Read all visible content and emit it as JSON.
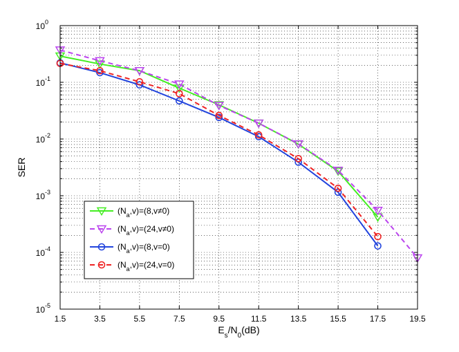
{
  "chart_data": {
    "type": "line",
    "xlabel": "E_s/N_0(dB)",
    "ylabel": "SER",
    "x": [
      1.5,
      3.5,
      5.5,
      7.5,
      9.5,
      11.5,
      13.5,
      15.5,
      17.5,
      19.5
    ],
    "xlim": [
      1.5,
      19.5
    ],
    "ylim": [
      1e-05,
      1
    ],
    "yscale": "log",
    "grid": true,
    "legend_position": "lower-left",
    "xtick_labels": [
      "1.5",
      "3.5",
      "5.5",
      "7.5",
      "9.5",
      "11.5",
      "13.5",
      "15.5",
      "17.5",
      "19.5"
    ],
    "ytick_labels": [
      {
        "base": "10",
        "exp": "0"
      },
      {
        "base": "10",
        "exp": "-1"
      },
      {
        "base": "10",
        "exp": "-2"
      },
      {
        "base": "10",
        "exp": "-3"
      },
      {
        "base": "10",
        "exp": "-4"
      },
      {
        "base": "10",
        "exp": "-5"
      }
    ],
    "series": [
      {
        "name": "(N_a,v)=(8,v≠0)",
        "legend": {
          "pre": "(N",
          "sub": "a",
          "post": ",v)=(8,v≠0)"
        },
        "color": "#44ee22",
        "dash": "solid",
        "marker": "triangle-down",
        "x": [
          1.5,
          3.5,
          5.5,
          7.5,
          9.5,
          11.5,
          13.5,
          15.5,
          17.5
        ],
        "values": [
          0.29,
          0.21,
          0.16,
          0.079,
          0.04,
          0.019,
          0.0081,
          0.0027,
          0.00042
        ]
      },
      {
        "name": "(N_a,v)=(24,v≠0)",
        "legend": {
          "pre": "(N",
          "sub": "a",
          "post": ",v)=(24,v≠0)"
        },
        "color": "#bb44ee",
        "dash": "dashed",
        "marker": "triangle-down",
        "x": [
          1.5,
          3.5,
          5.5,
          7.5,
          9.5,
          11.5,
          13.5,
          15.5,
          17.5,
          19.5
        ],
        "values": [
          0.37,
          0.24,
          0.16,
          0.093,
          0.039,
          0.019,
          0.0082,
          0.0028,
          0.00055,
          8e-05
        ]
      },
      {
        "name": "(N_a,v)=(8,v=0)",
        "legend": {
          "pre": "(N",
          "sub": "a",
          "post": ",v)=(8,v=0)"
        },
        "color": "#2244dd",
        "dash": "solid",
        "marker": "circle",
        "x": [
          1.5,
          3.5,
          5.5,
          7.5,
          9.5,
          11.5,
          13.5,
          15.5,
          17.5
        ],
        "values": [
          0.22,
          0.148,
          0.09,
          0.047,
          0.024,
          0.011,
          0.0039,
          0.00115,
          0.00013
        ]
      },
      {
        "name": "(N_a,v)=(24,v=0)",
        "legend": {
          "pre": "(N",
          "sub": "a",
          "post": ",v)=(24,v=0)"
        },
        "color": "#ee2222",
        "dash": "dashed",
        "marker": "circle",
        "x": [
          1.5,
          3.5,
          5.5,
          7.5,
          9.5,
          11.5,
          13.5,
          15.5,
          17.5
        ],
        "values": [
          0.215,
          0.16,
          0.102,
          0.063,
          0.026,
          0.0118,
          0.0045,
          0.00135,
          0.00019
        ]
      }
    ]
  }
}
